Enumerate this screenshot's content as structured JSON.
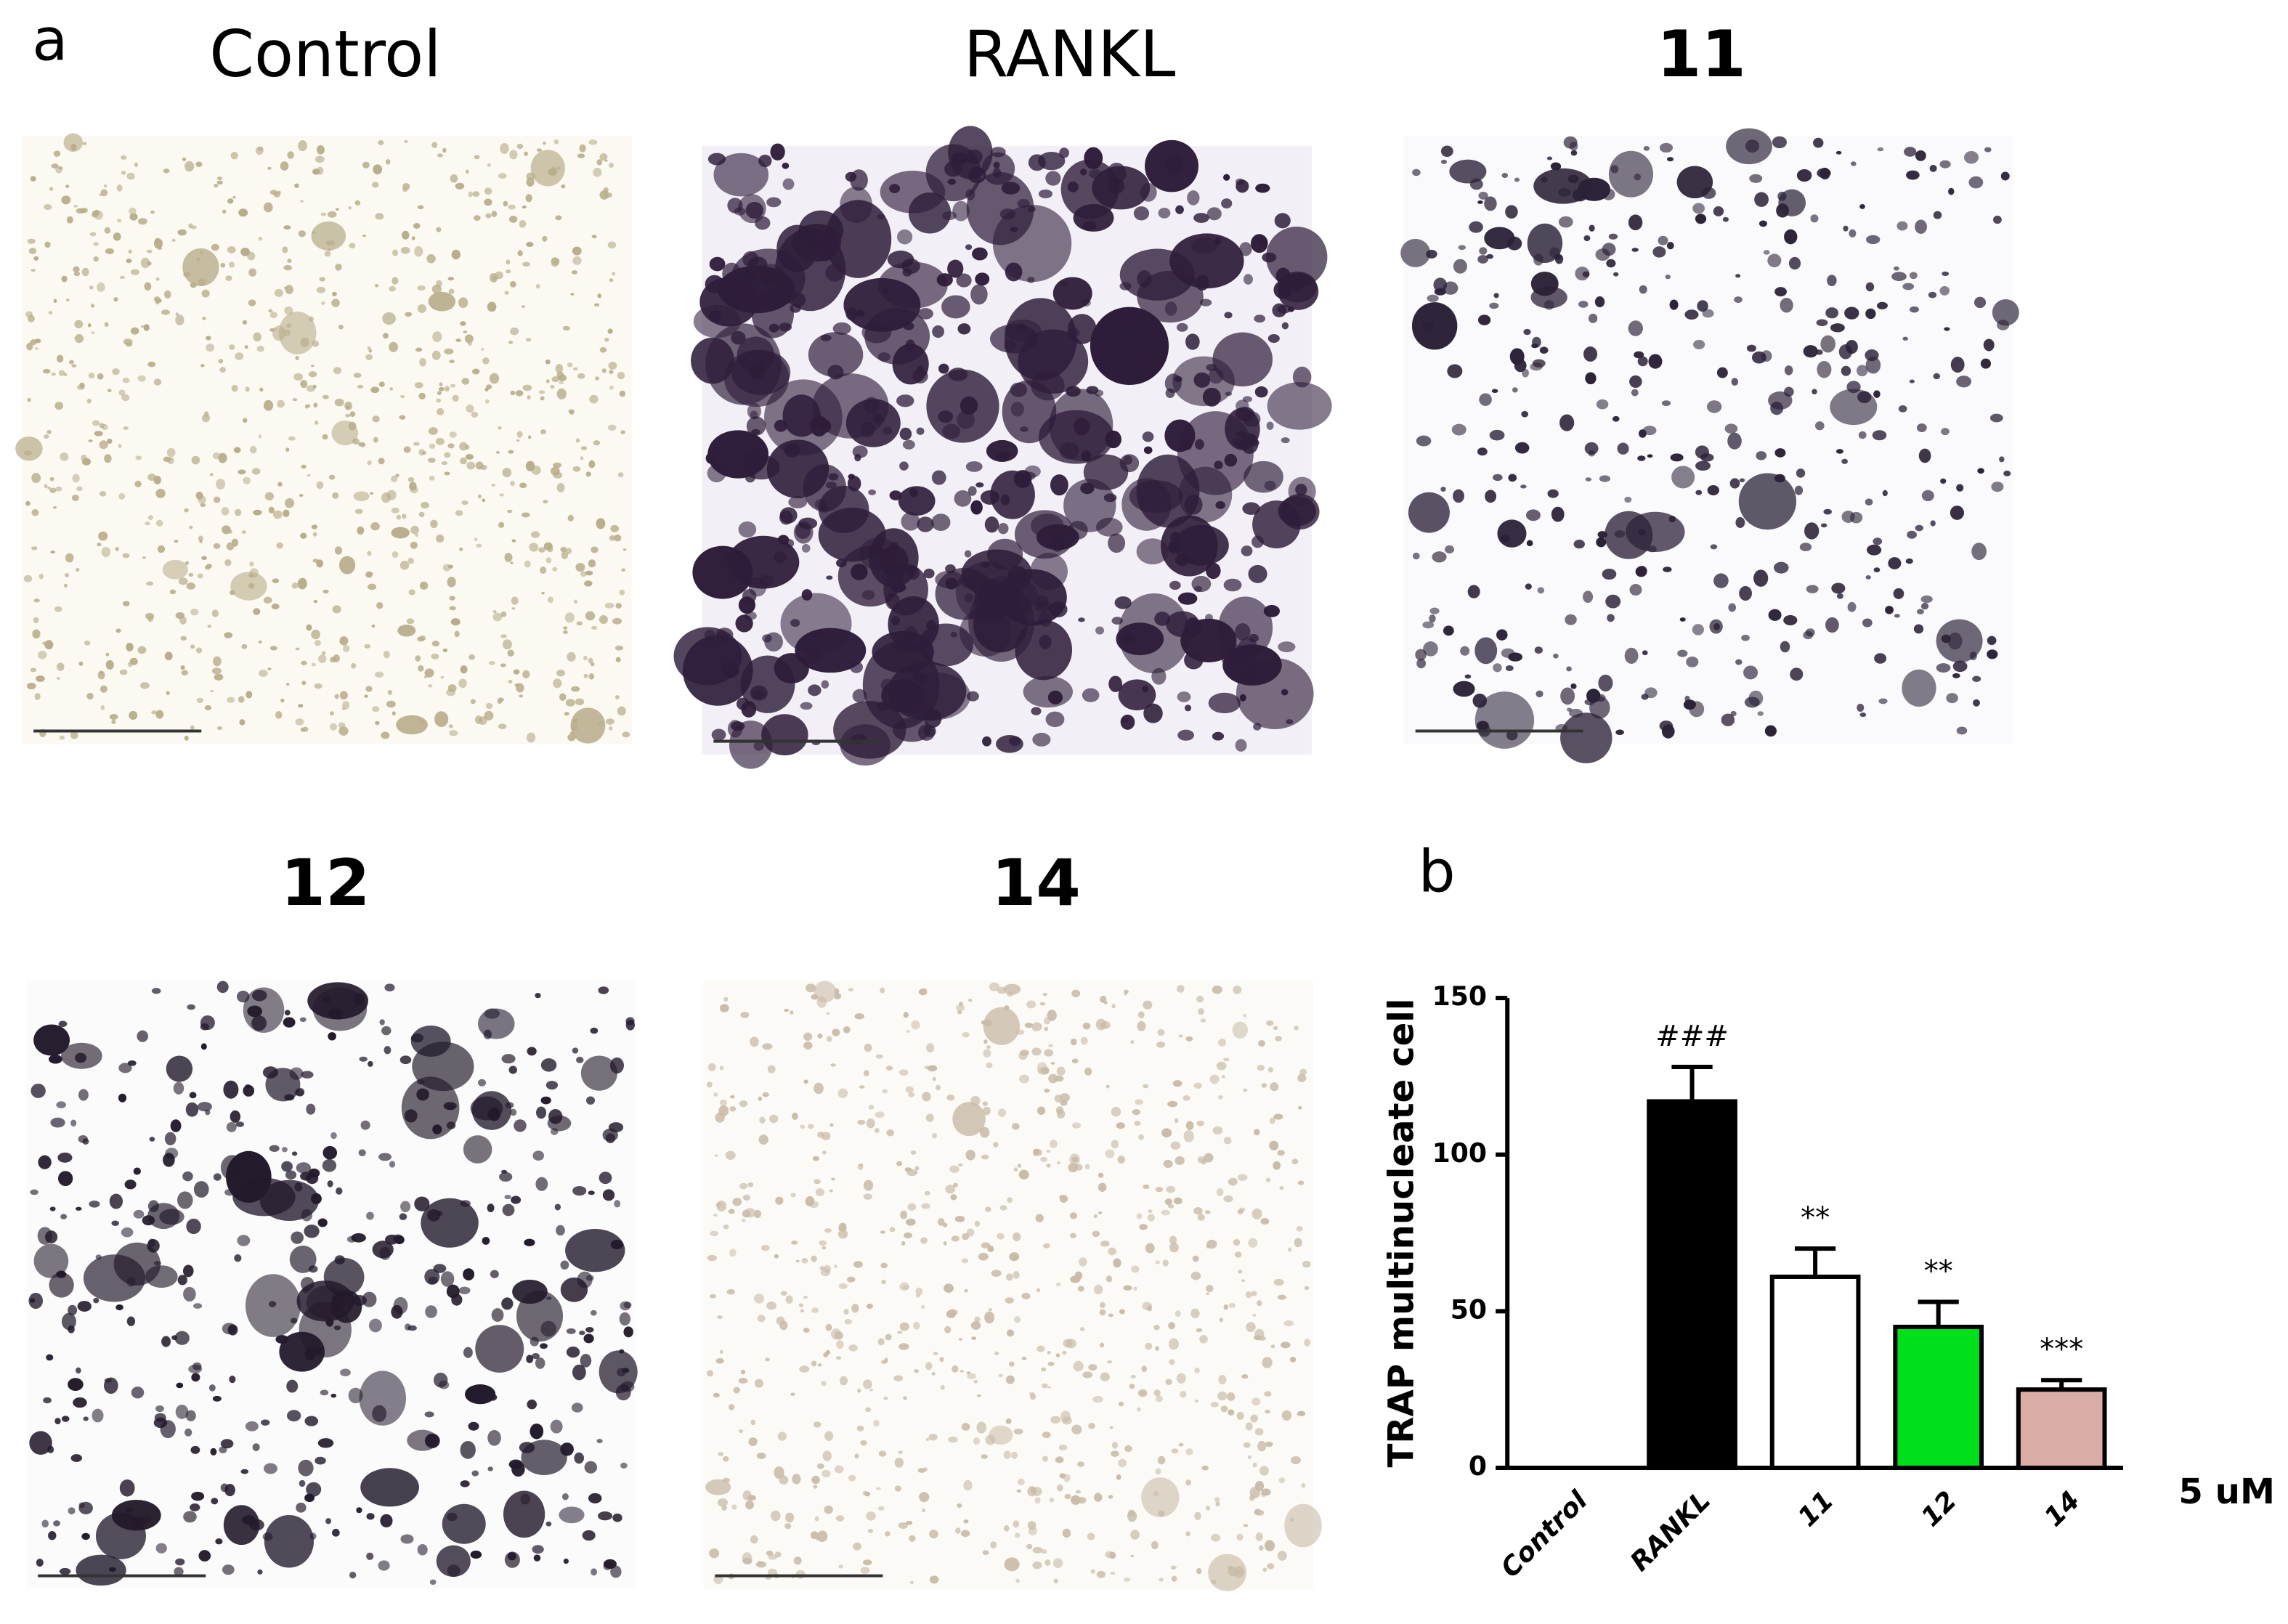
{
  "panel_labels": [
    "a",
    "b"
  ],
  "micrographs": [
    "Control",
    "RANKL",
    "11",
    "12",
    "14"
  ],
  "chart_data": {
    "type": "bar",
    "ylabel": "TRAP multinucleate cell",
    "categories": [
      "Control",
      "RANKL",
      "11",
      "12",
      "14"
    ],
    "values": [
      0,
      117,
      61,
      45,
      25
    ],
    "errors": [
      0,
      11,
      9,
      8,
      3
    ],
    "colors": [
      "#000000",
      "#000000",
      "#ffffff",
      "#00e01a",
      "#d9aca6"
    ],
    "significance": [
      null,
      "###",
      "**",
      "**",
      "***"
    ],
    "unit_label": "5 uM",
    "ylim": [
      0,
      150
    ],
    "yticks": [
      0,
      50,
      100,
      150
    ]
  }
}
